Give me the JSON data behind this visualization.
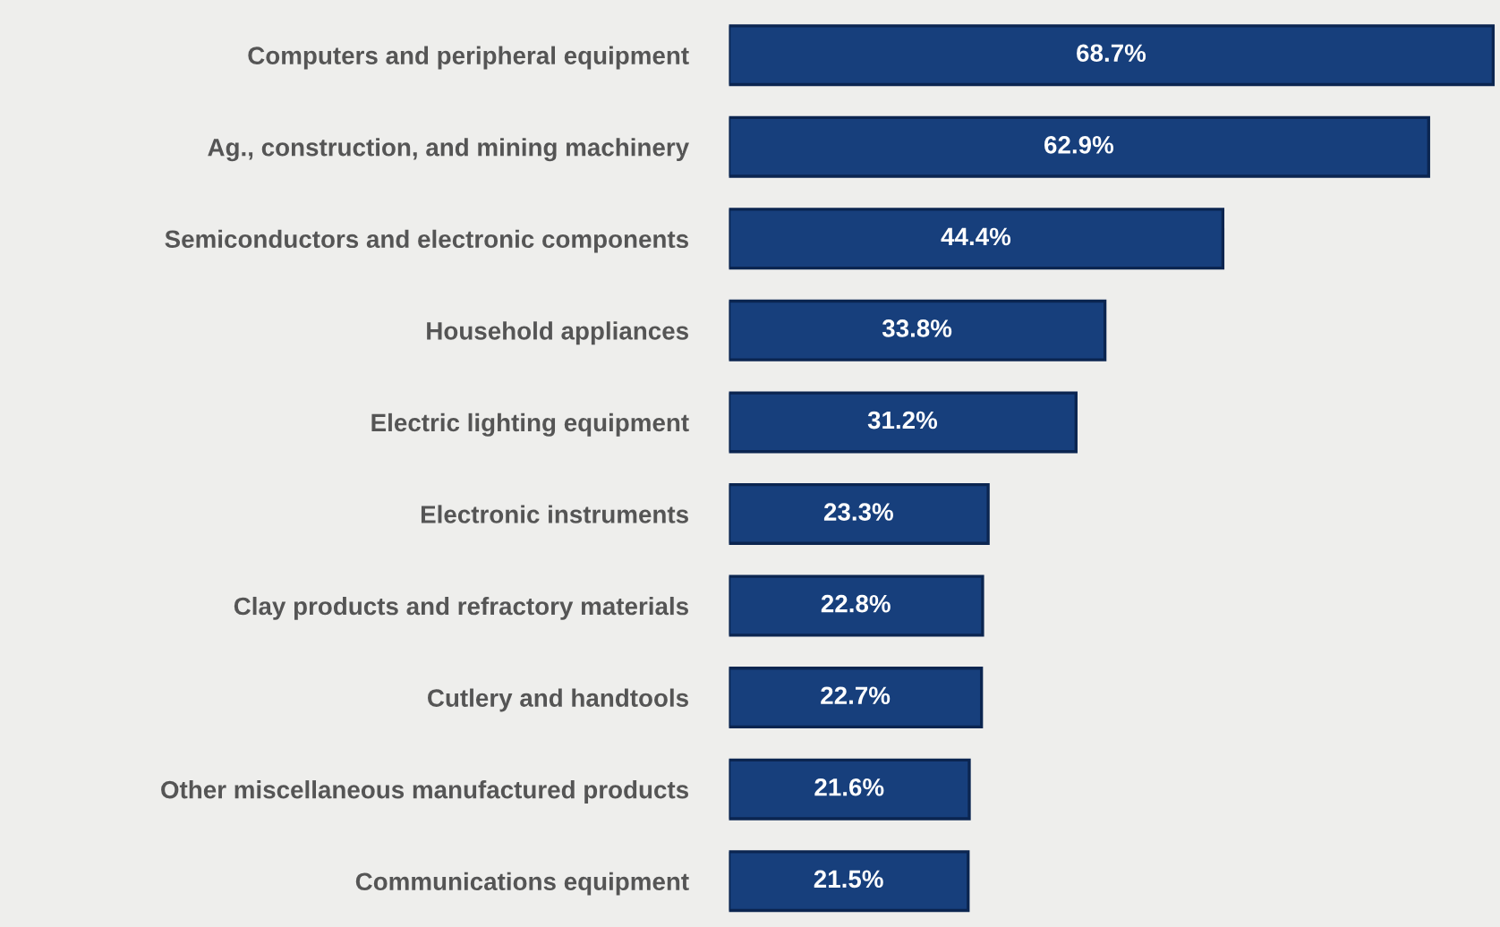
{
  "chart_data": {
    "type": "bar",
    "orientation": "horizontal",
    "data_labels": true,
    "grid": false,
    "legend": false,
    "tick_labels": "y",
    "categories": [
      "Computers and peripheral equipment",
      "Ag., construction, and mining machinery",
      "Semiconductors and electronic components",
      "Household appliances",
      "Electric lighting equipment",
      "Electronic instruments",
      "Clay products and refractory materials",
      "Cutlery and handtools",
      "Other miscellaneous manufactured products",
      "Communications equipment"
    ],
    "values": [
      68.7,
      62.9,
      44.4,
      33.8,
      31.2,
      23.3,
      22.8,
      22.7,
      21.6,
      21.5
    ],
    "value_labels": [
      "68.7%",
      "62.9%",
      "44.4%",
      "33.8%",
      "31.2%",
      "23.3%",
      "22.8%",
      "22.7%",
      "21.6%",
      "21.5%"
    ],
    "color": "#173f7c"
  }
}
